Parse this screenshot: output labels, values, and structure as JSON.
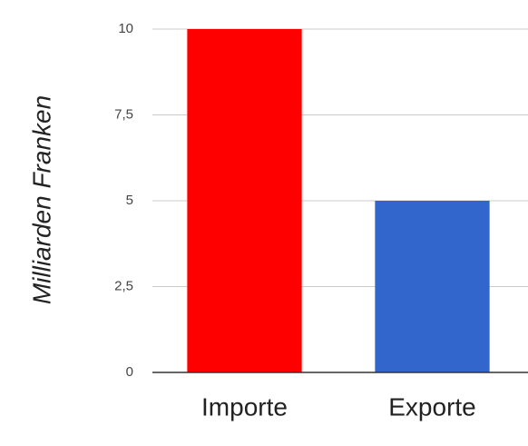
{
  "chart_data": {
    "type": "bar",
    "y_label": "Milliarden Franken",
    "categories": [
      "Importe",
      "Exporte"
    ],
    "values": [
      10,
      5
    ],
    "colors": [
      "#ff0000",
      "#3366cc"
    ],
    "ylim": [
      0,
      10
    ],
    "yticks": [
      0,
      {
        "value": 2.5,
        "label": "2,5"
      },
      5,
      {
        "value": 7.5,
        "label": "7,5"
      },
      10
    ],
    "grid": true
  }
}
